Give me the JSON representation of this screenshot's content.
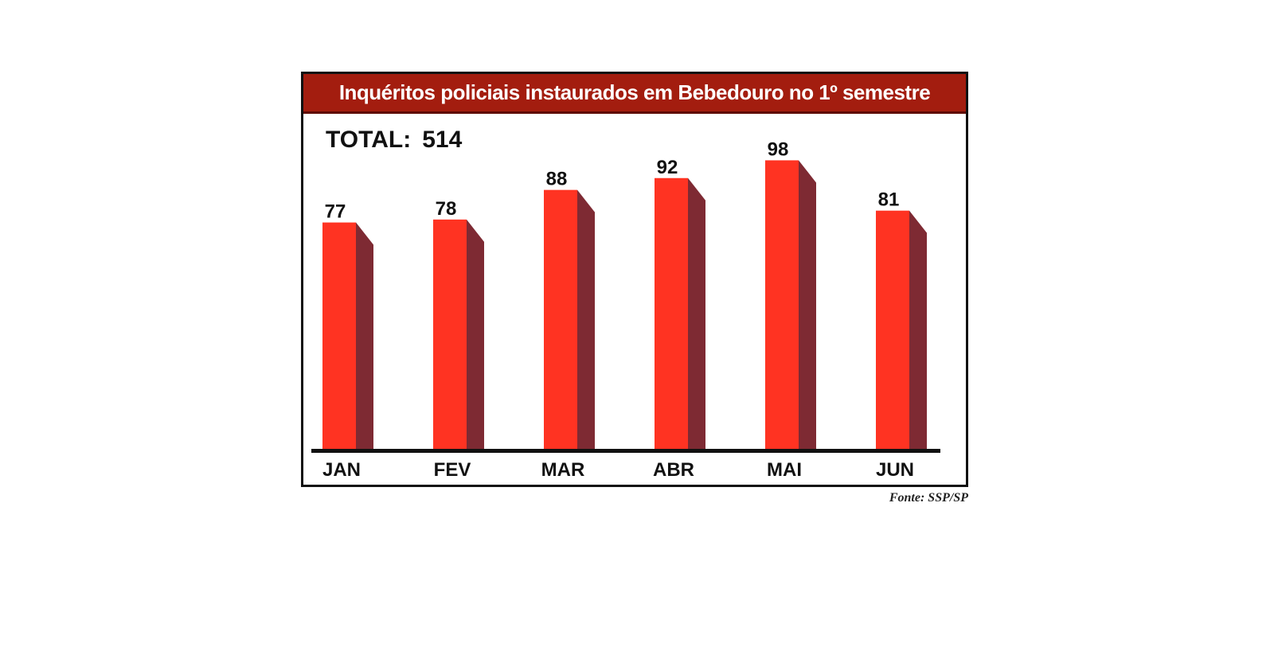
{
  "chart_data": {
    "type": "bar",
    "title": "Inquéritos policiais instaurados em Bebedouro no 1º semestre",
    "total_label": "TOTAL:",
    "total_value": "514",
    "categories": [
      "JAN",
      "FEV",
      "MAR",
      "ABR",
      "MAI",
      "JUN"
    ],
    "values": [
      77,
      78,
      88,
      92,
      98,
      81
    ],
    "data_labels": [
      "77",
      "78",
      "88",
      "92",
      "98",
      "81"
    ],
    "source": "Fonte: SSP/SP",
    "colors": {
      "bar_front": "#ff3322",
      "bar_side": "#7e2a33",
      "title_band": "#a31d0f",
      "axis": "#111111"
    },
    "xlabel": "",
    "ylabel": "",
    "ylim": [
      0,
      100
    ],
    "grid": false,
    "legend": "none"
  }
}
